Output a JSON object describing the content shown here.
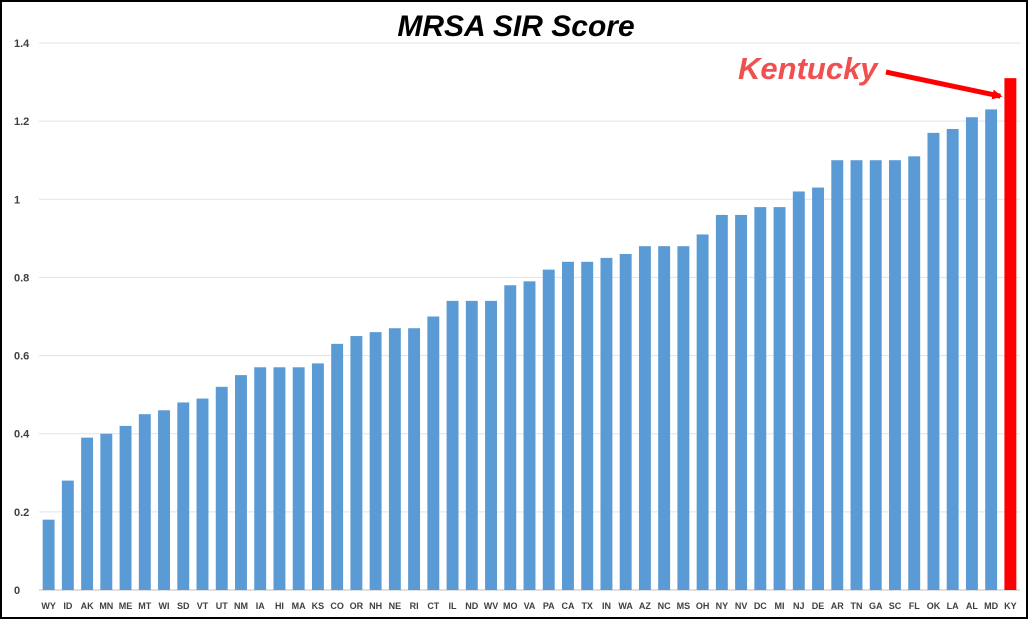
{
  "chart_data": {
    "type": "bar",
    "title": "MRSA SIR Score",
    "xlabel": "",
    "ylabel": "",
    "ylim": [
      0,
      1.4
    ],
    "yticks": [
      0,
      0.2,
      0.4,
      0.6,
      0.8,
      1,
      1.2,
      1.4
    ],
    "ytick_labels": [
      "0",
      "0.2",
      "0.4",
      "0.6",
      "0.8",
      "1",
      "1.2",
      "1.4"
    ],
    "grid": true,
    "legend": "none",
    "categories": [
      "WY",
      "ID",
      "AK",
      "MN",
      "ME",
      "MT",
      "WI",
      "SD",
      "VT",
      "UT",
      "NM",
      "IA",
      "HI",
      "MA",
      "KS",
      "CO",
      "OR",
      "NH",
      "NE",
      "RI",
      "CT",
      "IL",
      "ND",
      "WV",
      "MO",
      "VA",
      "PA",
      "CA",
      "TX",
      "IN",
      "WA",
      "AZ",
      "NC",
      "MS",
      "OH",
      "NY",
      "NV",
      "DC",
      "MI",
      "NJ",
      "DE",
      "AR",
      "TN",
      "GA",
      "SC",
      "FL",
      "OK",
      "LA",
      "AL",
      "MD",
      "KY"
    ],
    "values": [
      0.18,
      0.28,
      0.39,
      0.4,
      0.42,
      0.45,
      0.46,
      0.48,
      0.49,
      0.52,
      0.55,
      0.57,
      0.57,
      0.57,
      0.58,
      0.63,
      0.65,
      0.66,
      0.67,
      0.67,
      0.7,
      0.74,
      0.74,
      0.74,
      0.78,
      0.79,
      0.82,
      0.84,
      0.84,
      0.85,
      0.86,
      0.88,
      0.88,
      0.88,
      0.91,
      0.96,
      0.96,
      0.98,
      0.98,
      1.02,
      1.03,
      1.1,
      1.1,
      1.1,
      1.1,
      1.11,
      1.17,
      1.18,
      1.21,
      1.23,
      1.31
    ],
    "colors": {
      "bar": "#5b9bd5",
      "highlight": "#ff0000",
      "annotation_text": "#f05050",
      "annotation_arrow": "#ff0000"
    },
    "highlight_category": "KY",
    "annotation": {
      "text": "Kentucky",
      "target": "KY"
    }
  }
}
